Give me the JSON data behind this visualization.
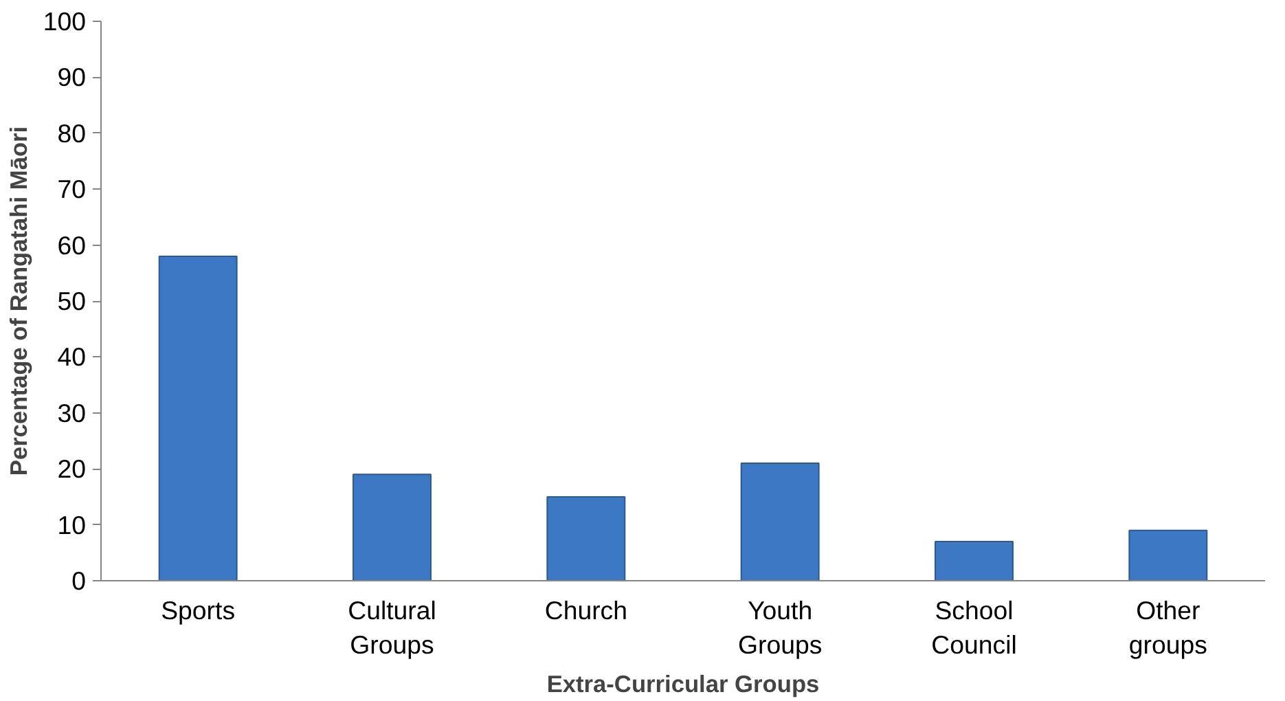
{
  "chart_data": {
    "type": "bar",
    "xlabel": "Extra-Curricular Groups",
    "ylabel": "Percentage of Rangatahi Māori",
    "categories": [
      "Sports",
      "Cultural Groups",
      "Church",
      "Youth Groups",
      "School Council",
      "Other groups"
    ],
    "values": [
      58,
      19,
      15,
      21,
      7,
      9
    ],
    "color": "#3c78c4",
    "ylim": [
      0,
      100
    ],
    "yticks": [
      0,
      10,
      20,
      30,
      40,
      50,
      60,
      70,
      80,
      90,
      100
    ],
    "grid": false
  }
}
